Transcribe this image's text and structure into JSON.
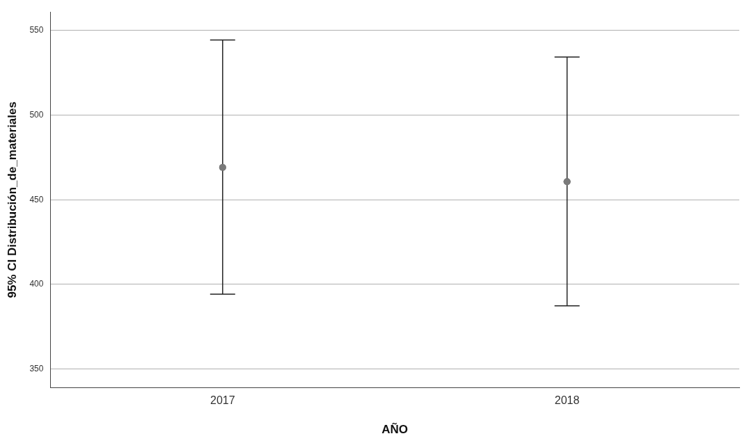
{
  "chart_data": {
    "type": "scatter",
    "xlabel": "AÑO",
    "ylabel": "95% CI Distribución_de_materiales",
    "categories": [
      "2017",
      "2018"
    ],
    "series": [
      {
        "color": "#7a7a7a",
        "values": [
          469.1,
          460.7
        ],
        "errors": [
          [
            394.2,
            544.4
          ],
          [
            387.4,
            534.4
          ]
        ]
      }
    ],
    "ylim": [
      339,
      561
    ],
    "yticks": [
      350,
      400,
      450,
      500,
      550
    ],
    "grid": "y",
    "marker": "circle",
    "legend": false
  }
}
